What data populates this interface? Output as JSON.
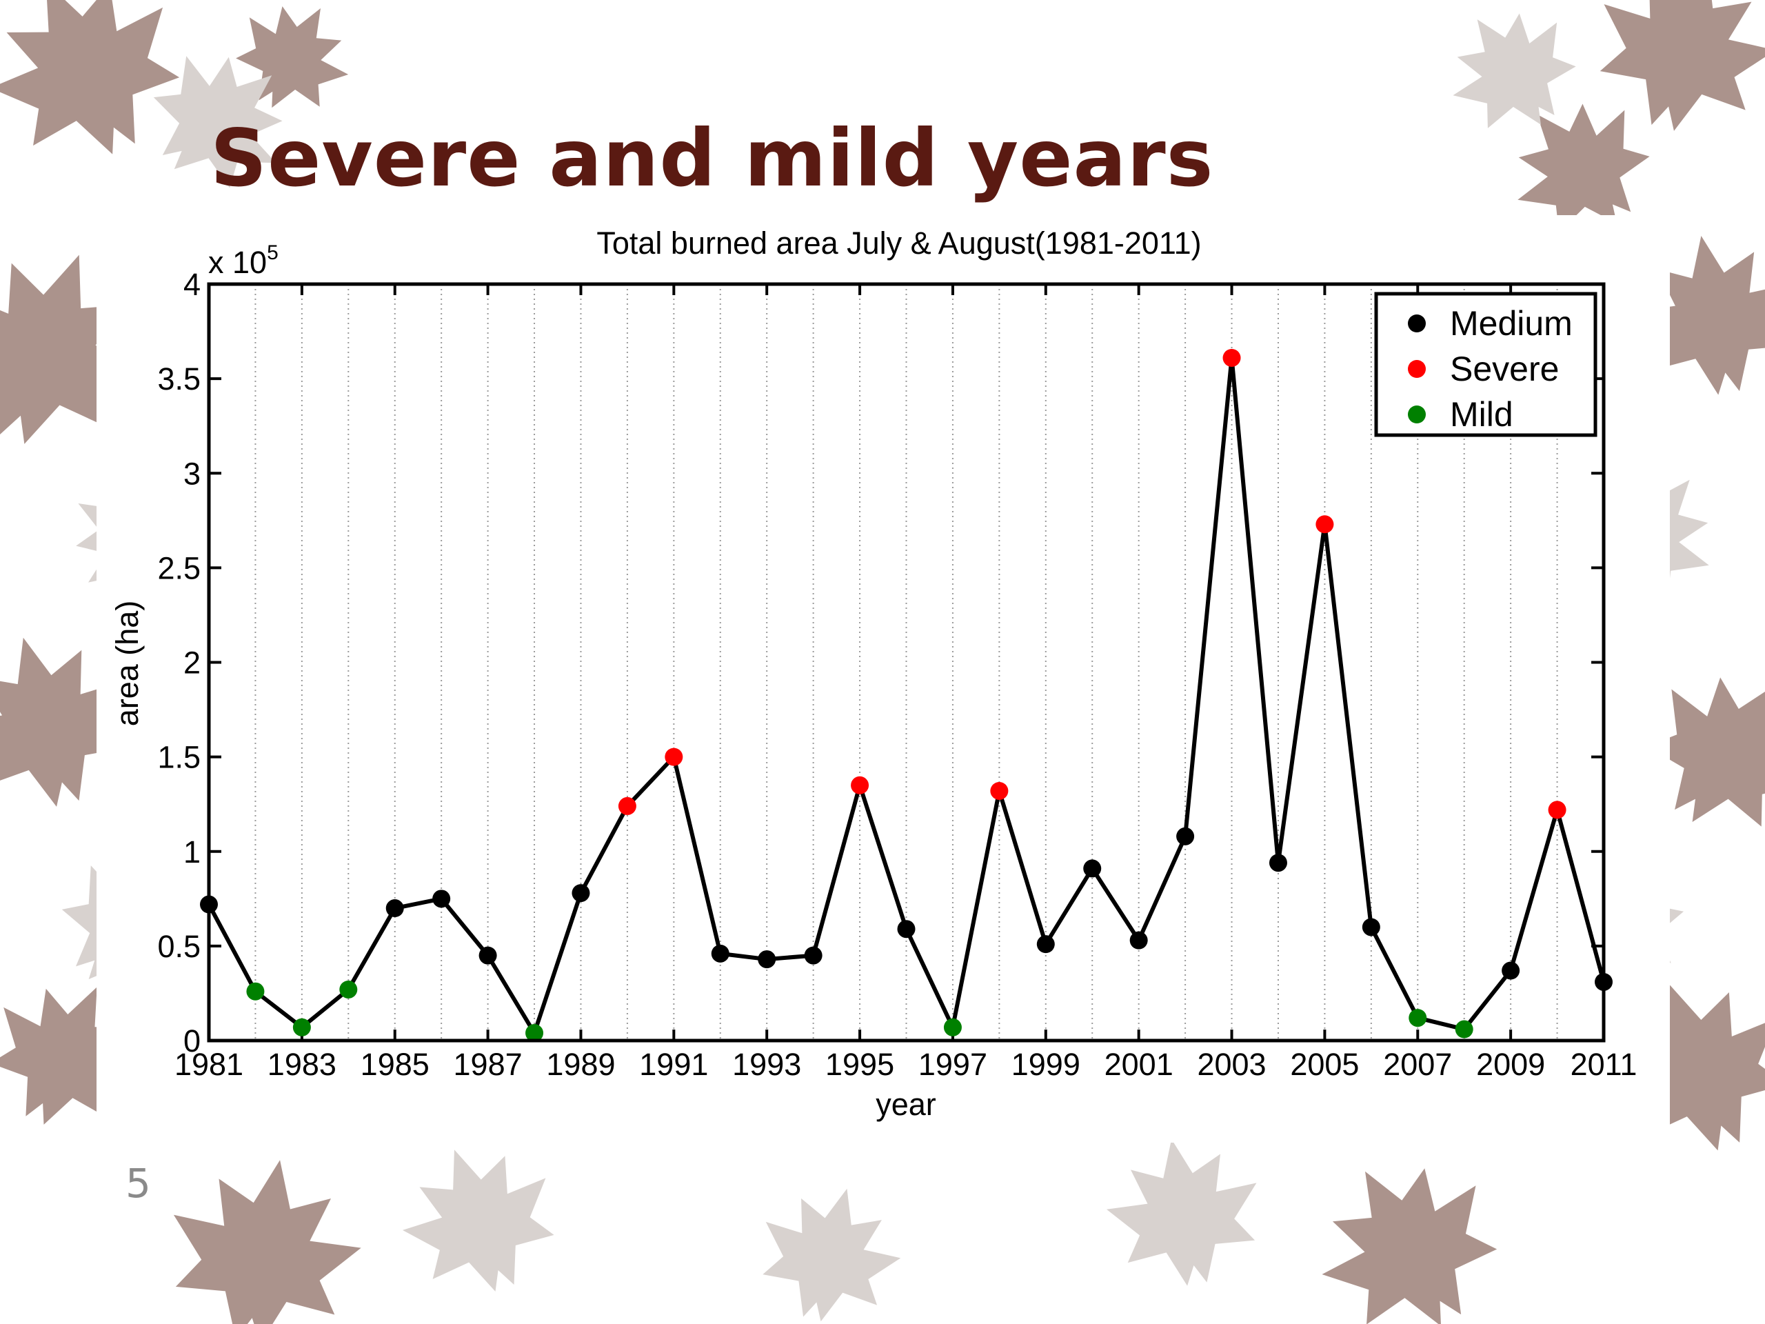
{
  "slide": {
    "title": "Severe and mild years",
    "page_number": "5",
    "decoration": "maple-leaf-pattern"
  },
  "chart_data": {
    "type": "line",
    "title": "Total burned area July & August(1981-2011)",
    "xlabel": "year",
    "ylabel": "area (ha)",
    "y_multiplier_label": "x 10",
    "y_multiplier_exponent": "5",
    "xlim": [
      1981,
      2011
    ],
    "ylim": [
      0,
      4
    ],
    "x_ticks": [
      "1981",
      "1983",
      "1985",
      "1987",
      "1989",
      "1991",
      "1993",
      "1995",
      "1997",
      "1999",
      "2001",
      "2003",
      "2005",
      "2007",
      "2009",
      "2011"
    ],
    "y_ticks": [
      "0",
      "0.5",
      "1",
      "1.5",
      "2",
      "2.5",
      "3",
      "3.5",
      "4"
    ],
    "grid": "vertical-dotted",
    "legend_position": "top-right",
    "legend": [
      {
        "key": "medium",
        "label": "Medium",
        "color": "#000000"
      },
      {
        "key": "severe",
        "label": "Severe",
        "color": "#ff0000"
      },
      {
        "key": "mild",
        "label": "Mild",
        "color": "#008000"
      }
    ],
    "line_color": "#000000",
    "years": [
      1981,
      1982,
      1983,
      1984,
      1985,
      1986,
      1987,
      1988,
      1989,
      1990,
      1991,
      1992,
      1993,
      1994,
      1995,
      1996,
      1997,
      1998,
      1999,
      2000,
      2001,
      2002,
      2003,
      2004,
      2005,
      2006,
      2007,
      2008,
      2009,
      2010,
      2011
    ],
    "values": [
      0.72,
      0.26,
      0.07,
      0.27,
      0.7,
      0.75,
      0.45,
      0.04,
      0.78,
      1.24,
      1.5,
      0.46,
      0.43,
      0.45,
      1.35,
      0.59,
      0.07,
      1.32,
      0.51,
      0.91,
      0.53,
      1.08,
      3.61,
      0.94,
      2.73,
      0.6,
      0.12,
      0.06,
      0.37,
      1.22,
      0.31
    ],
    "categories": [
      "medium",
      "mild",
      "mild",
      "mild",
      "medium",
      "medium",
      "medium",
      "mild",
      "medium",
      "severe",
      "severe",
      "medium",
      "medium",
      "medium",
      "severe",
      "medium",
      "mild",
      "severe",
      "medium",
      "medium",
      "medium",
      "medium",
      "severe",
      "medium",
      "severe",
      "medium",
      "mild",
      "mild",
      "medium",
      "severe",
      "medium"
    ]
  }
}
